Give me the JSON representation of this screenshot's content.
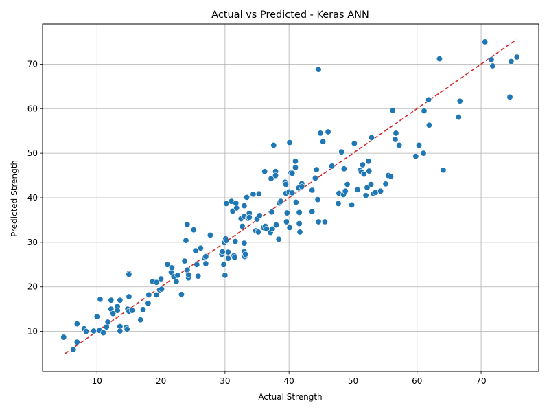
{
  "chart_data": {
    "type": "scatter",
    "title": "Actual vs Predicted - Keras ANN",
    "xlabel": "Actual Strength",
    "ylabel": "Predicted Strength",
    "xlim": [
      1.5,
      79.0
    ],
    "ylim": [
      1.0,
      79.0
    ],
    "xticks": [
      10,
      20,
      30,
      40,
      50,
      60,
      70
    ],
    "yticks": [
      10,
      20,
      30,
      40,
      50,
      60,
      70
    ],
    "grid": true,
    "point_color": "#1f77b4",
    "reference_line": {
      "from": [
        5,
        5
      ],
      "to": [
        75.5,
        75.5
      ],
      "color": "#d62728",
      "style": "dashed"
    },
    "points": [
      [
        4.8,
        8.7
      ],
      [
        6.3,
        5.9
      ],
      [
        6.9,
        11.7
      ],
      [
        6.9,
        7.6
      ],
      [
        8.0,
        10.6
      ],
      [
        8.3,
        10.0
      ],
      [
        9.5,
        10.1
      ],
      [
        10.0,
        13.3
      ],
      [
        10.5,
        17.2
      ],
      [
        10.4,
        10.2
      ],
      [
        11.0,
        9.7
      ],
      [
        11.5,
        11.0
      ],
      [
        11.7,
        12.1
      ],
      [
        12.2,
        15.0
      ],
      [
        12.2,
        17.0
      ],
      [
        12.5,
        14.0
      ],
      [
        13.2,
        15.6
      ],
      [
        13.2,
        14.7
      ],
      [
        13.6,
        17.0
      ],
      [
        13.6,
        11.1
      ],
      [
        13.6,
        10.1
      ],
      [
        14.6,
        10.9
      ],
      [
        14.7,
        10.5
      ],
      [
        15.0,
        17.8
      ],
      [
        14.8,
        15.0
      ],
      [
        15.0,
        14.5
      ],
      [
        15.5,
        14.7
      ],
      [
        15.0,
        23.0
      ],
      [
        15.0,
        22.8
      ],
      [
        16.8,
        12.6
      ],
      [
        17.2,
        14.9
      ],
      [
        18.0,
        16.3
      ],
      [
        18.1,
        18.2
      ],
      [
        18.7,
        21.2
      ],
      [
        19.3,
        21.0
      ],
      [
        19.3,
        18.2
      ],
      [
        19.8,
        19.3
      ],
      [
        20.0,
        21.8
      ],
      [
        20.1,
        19.5
      ],
      [
        21.0,
        25.0
      ],
      [
        21.6,
        23.3
      ],
      [
        21.7,
        24.3
      ],
      [
        22.0,
        22.3
      ],
      [
        22.4,
        21.2
      ],
      [
        22.6,
        22.6
      ],
      [
        23.2,
        18.3
      ],
      [
        23.7,
        25.8
      ],
      [
        23.9,
        30.4
      ],
      [
        24.1,
        34.0
      ],
      [
        24.1,
        23.8
      ],
      [
        24.3,
        22.0
      ],
      [
        24.3,
        22.7
      ],
      [
        25.1,
        32.8
      ],
      [
        25.4,
        28.1
      ],
      [
        25.6,
        25.0
      ],
      [
        25.8,
        22.4
      ],
      [
        26.2,
        28.7
      ],
      [
        26.8,
        26.5
      ],
      [
        27.0,
        25.2
      ],
      [
        27.0,
        26.8
      ],
      [
        27.7,
        31.6
      ],
      [
        29.5,
        27.3
      ],
      [
        29.6,
        27.9
      ],
      [
        29.8,
        25.0
      ],
      [
        29.9,
        29.9
      ],
      [
        30.0,
        22.6
      ],
      [
        30.1,
        30.8
      ],
      [
        30.2,
        30.4
      ],
      [
        30.2,
        38.7
      ],
      [
        30.5,
        26.4
      ],
      [
        30.5,
        27.8
      ],
      [
        31.0,
        39.2
      ],
      [
        31.2,
        37.0
      ],
      [
        31.4,
        27.0
      ],
      [
        31.5,
        26.6
      ],
      [
        31.6,
        30.2
      ],
      [
        31.7,
        38.8
      ],
      [
        31.8,
        37.7
      ],
      [
        32.5,
        35.3
      ],
      [
        32.7,
        33.6
      ],
      [
        33.0,
        38.2
      ],
      [
        33.0,
        35.8
      ],
      [
        33.0,
        29.8
      ],
      [
        33.0,
        27.9
      ],
      [
        33.1,
        26.8
      ],
      [
        33.2,
        27.3
      ],
      [
        33.4,
        40.1
      ],
      [
        33.6,
        35.4
      ],
      [
        33.8,
        36.5
      ],
      [
        33.8,
        35.6
      ],
      [
        34.4,
        40.8
      ],
      [
        34.8,
        32.6
      ],
      [
        35.0,
        35.2
      ],
      [
        35.1,
        32.4
      ],
      [
        35.2,
        32.3
      ],
      [
        35.3,
        40.9
      ],
      [
        35.4,
        36.0
      ],
      [
        36.0,
        33.3
      ],
      [
        36.2,
        45.9
      ],
      [
        36.3,
        33.6
      ],
      [
        36.5,
        33.0
      ],
      [
        37.1,
        32.2
      ],
      [
        37.2,
        44.3
      ],
      [
        37.3,
        36.8
      ],
      [
        37.4,
        33.0
      ],
      [
        37.6,
        51.8
      ],
      [
        37.9,
        45.9
      ],
      [
        37.9,
        45.0
      ],
      [
        38.0,
        33.9
      ],
      [
        38.4,
        30.7
      ],
      [
        38.5,
        38.8
      ],
      [
        38.7,
        39.2
      ],
      [
        39.4,
        43.5
      ],
      [
        39.5,
        43.0
      ],
      [
        39.5,
        41.0
      ],
      [
        39.6,
        34.6
      ],
      [
        39.7,
        36.6
      ],
      [
        40.0,
        41.3
      ],
      [
        40.1,
        33.3
      ],
      [
        40.1,
        52.4
      ],
      [
        40.3,
        45.6
      ],
      [
        40.5,
        45.5
      ],
      [
        40.5,
        41.1
      ],
      [
        41.0,
        46.8
      ],
      [
        41.0,
        48.2
      ],
      [
        41.1,
        39.0
      ],
      [
        41.5,
        42.2
      ],
      [
        41.6,
        34.2
      ],
      [
        41.6,
        36.7
      ],
      [
        41.7,
        32.3
      ],
      [
        42.0,
        43.2
      ],
      [
        42.0,
        42.5
      ],
      [
        43.6,
        41.7
      ],
      [
        43.6,
        36.9
      ],
      [
        44.1,
        44.4
      ],
      [
        44.3,
        46.3
      ],
      [
        44.6,
        68.8
      ],
      [
        44.5,
        39.6
      ],
      [
        44.6,
        34.6
      ],
      [
        44.9,
        54.5
      ],
      [
        45.3,
        52.6
      ],
      [
        45.6,
        34.6
      ],
      [
        46.1,
        54.8
      ],
      [
        46.7,
        47.1
      ],
      [
        47.7,
        38.7
      ],
      [
        47.8,
        41.0
      ],
      [
        48.2,
        50.3
      ],
      [
        48.5,
        40.7
      ],
      [
        48.6,
        46.5
      ],
      [
        48.8,
        41.5
      ],
      [
        49.1,
        43.0
      ],
      [
        49.8,
        38.4
      ],
      [
        50.2,
        52.2
      ],
      [
        50.7,
        41.8
      ],
      [
        51.1,
        46.1
      ],
      [
        51.3,
        45.8
      ],
      [
        51.5,
        47.4
      ],
      [
        51.7,
        45.3
      ],
      [
        52.0,
        40.5
      ],
      [
        52.2,
        42.3
      ],
      [
        52.4,
        48.2
      ],
      [
        52.5,
        46.0
      ],
      [
        52.8,
        43.0
      ],
      [
        52.9,
        53.5
      ],
      [
        53.2,
        40.9
      ],
      [
        53.5,
        41.2
      ],
      [
        54.3,
        41.5
      ],
      [
        55.1,
        43.1
      ],
      [
        55.5,
        45.0
      ],
      [
        55.9,
        44.8
      ],
      [
        56.2,
        59.6
      ],
      [
        56.6,
        53.1
      ],
      [
        56.7,
        54.5
      ],
      [
        57.2,
        51.8
      ],
      [
        59.8,
        49.3
      ],
      [
        60.3,
        51.8
      ],
      [
        61.0,
        50.0
      ],
      [
        61.1,
        59.5
      ],
      [
        61.8,
        62.0
      ],
      [
        61.9,
        56.3
      ],
      [
        63.5,
        71.2
      ],
      [
        64.1,
        46.2
      ],
      [
        66.5,
        58.1
      ],
      [
        66.7,
        61.7
      ],
      [
        70.6,
        75.0
      ],
      [
        71.6,
        71.0
      ],
      [
        71.8,
        69.6
      ],
      [
        74.5,
        62.6
      ],
      [
        74.7,
        70.6
      ],
      [
        75.6,
        71.6
      ]
    ]
  }
}
